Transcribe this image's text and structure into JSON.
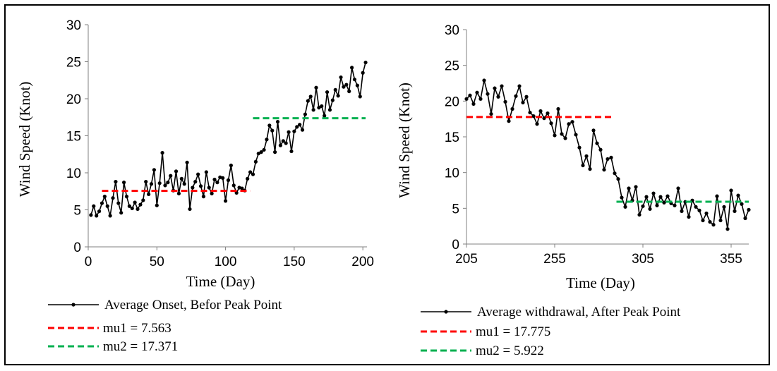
{
  "chart_data": [
    {
      "type": "line",
      "title": "",
      "xlabel": "Time (Day)",
      "ylabel": "Wind Speed (Knot)",
      "xlim": [
        0,
        203
      ],
      "ylim": [
        0,
        30
      ],
      "xticks": [
        0,
        50,
        100,
        150,
        200
      ],
      "yticks": [
        0,
        5,
        10,
        15,
        20,
        25,
        30
      ],
      "grid": false,
      "legend_position": "bottom",
      "series": [
        {
          "name": "Average  Onset, Befor  Peak Point",
          "color": "#000000",
          "style": "solid-with-markers",
          "x": [
            2,
            4,
            6,
            8,
            10,
            12,
            14,
            16,
            18,
            20,
            22,
            24,
            26,
            28,
            30,
            32,
            34,
            36,
            38,
            40,
            42,
            44,
            46,
            48,
            50,
            52,
            54,
            56,
            58,
            60,
            62,
            64,
            66,
            68,
            70,
            72,
            74,
            76,
            78,
            80,
            82,
            84,
            86,
            88,
            90,
            92,
            94,
            96,
            98,
            100,
            102,
            104,
            106,
            108,
            110,
            112,
            114,
            116,
            118,
            120,
            122,
            124,
            126,
            128,
            130,
            132,
            134,
            136,
            138,
            140,
            142,
            144,
            146,
            148,
            150,
            152,
            154,
            156,
            158,
            160,
            162,
            164,
            166,
            168,
            170,
            172,
            174,
            176,
            178,
            180,
            182,
            184,
            186,
            188,
            190,
            192,
            194,
            196,
            198,
            200,
            202
          ],
          "y": [
            4.3,
            5.5,
            4.2,
            4.8,
            5.9,
            6.8,
            5.5,
            4.2,
            6.6,
            8.8,
            5.9,
            4.6,
            8.7,
            6.8,
            5.5,
            5.2,
            6.0,
            5.1,
            5.7,
            6.3,
            8.8,
            7.1,
            8.5,
            10.4,
            5.6,
            8.6,
            12.7,
            8.3,
            8.7,
            9.6,
            7.6,
            10.2,
            7.2,
            9.2,
            8.5,
            11.4,
            5.1,
            8.0,
            8.8,
            9.8,
            8.2,
            6.8,
            10.1,
            8.0,
            7.2,
            9.1,
            8.7,
            9.4,
            9.3,
            6.2,
            9.0,
            11.0,
            8.3,
            7.3,
            8.0,
            7.9,
            7.6,
            9.2,
            10.1,
            9.8,
            11.5,
            12.6,
            12.8,
            13.1,
            14.5,
            16.4,
            15.7,
            12.8,
            16.9,
            13.7,
            14.3,
            14.0,
            15.5,
            12.9,
            15.6,
            16.2,
            16.5,
            15.8,
            17.9,
            19.7,
            20.3,
            18.5,
            21.5,
            18.8,
            19.0,
            17.7,
            20.9,
            18.5,
            19.8,
            21.2,
            20.4,
            22.9,
            21.6,
            21.9,
            21.0,
            24.2,
            22.6,
            21.8,
            20.3,
            23.5,
            24.9
          ]
        },
        {
          "name": "mu1 = 7.563",
          "color": "#ff0000",
          "style": "dashed",
          "x": [
            10,
            118
          ],
          "y": [
            7.563,
            7.563
          ]
        },
        {
          "name": "mu2 = 17.371",
          "color": "#00b050",
          "style": "dashed",
          "x": [
            120,
            202
          ],
          "y": [
            17.371,
            17.371
          ]
        }
      ]
    },
    {
      "type": "line",
      "title": "",
      "xlabel": "Time (Day)",
      "ylabel": "Wind Speed (Knot)",
      "xlim": [
        205,
        365
      ],
      "ylim": [
        0,
        30
      ],
      "xticks": [
        205,
        255,
        305,
        355
      ],
      "yticks": [
        0,
        5,
        10,
        15,
        20,
        25,
        30
      ],
      "grid": false,
      "legend_position": "bottom",
      "series": [
        {
          "name": "Average withdrawal,  After Peak Point",
          "color": "#000000",
          "style": "solid-with-markers",
          "x": [
            205,
            207,
            209,
            211,
            213,
            215,
            217,
            219,
            221,
            223,
            225,
            227,
            229,
            231,
            233,
            235,
            237,
            239,
            241,
            243,
            245,
            247,
            249,
            251,
            253,
            255,
            257,
            259,
            261,
            263,
            265,
            267,
            269,
            271,
            273,
            275,
            277,
            279,
            281,
            283,
            285,
            287,
            289,
            291,
            293,
            295,
            297,
            299,
            301,
            303,
            305,
            307,
            309,
            311,
            313,
            315,
            317,
            319,
            321,
            323,
            325,
            327,
            329,
            331,
            333,
            335,
            337,
            339,
            341,
            343,
            345,
            347,
            349,
            351,
            353,
            355,
            357,
            359,
            361,
            363,
            365
          ],
          "y": [
            20.3,
            20.8,
            19.6,
            21.2,
            20.3,
            22.9,
            21.0,
            18.2,
            21.8,
            20.6,
            22.1,
            19.9,
            17.2,
            18.9,
            20.7,
            22.1,
            19.8,
            20.6,
            18.4,
            17.9,
            16.8,
            18.6,
            17.6,
            18.3,
            16.9,
            15.2,
            18.9,
            15.4,
            14.8,
            16.8,
            17.1,
            15.3,
            13.5,
            11.0,
            12.3,
            10.5,
            15.9,
            14.1,
            13.2,
            10.4,
            11.9,
            12.1,
            9.9,
            9.1,
            6.5,
            5.2,
            7.8,
            6.1,
            8.0,
            4.1,
            5.3,
            6.6,
            4.9,
            7.1,
            5.4,
            6.6,
            5.8,
            6.7,
            5.7,
            5.4,
            7.8,
            4.6,
            5.9,
            3.8,
            6.1,
            5.2,
            4.7,
            3.3,
            4.3,
            3.1,
            2.7,
            6.7,
            3.3,
            5.2,
            2.1,
            7.5,
            4.6,
            6.8,
            5.6,
            3.6,
            4.8
          ]
        },
        {
          "name": "mu1 = 17.775",
          "color": "#ff0000",
          "style": "dashed",
          "x": [
            205,
            288
          ],
          "y": [
            17.775,
            17.775
          ]
        },
        {
          "name": "mu2 = 5.922",
          "color": "#00b050",
          "style": "dashed",
          "x": [
            290,
            365
          ],
          "y": [
            5.922,
            5.922
          ]
        }
      ]
    }
  ]
}
